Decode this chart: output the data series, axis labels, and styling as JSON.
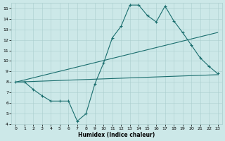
{
  "xlabel": "Humidex (Indice chaleur)",
  "bg_color": "#cce8e8",
  "line_color": "#1a6e6e",
  "xlim": [
    -0.5,
    23.5
  ],
  "ylim": [
    4,
    15.5
  ],
  "xticks": [
    0,
    1,
    2,
    3,
    4,
    5,
    6,
    7,
    8,
    9,
    10,
    11,
    12,
    13,
    14,
    15,
    16,
    17,
    18,
    19,
    20,
    21,
    22,
    23
  ],
  "yticks": [
    4,
    5,
    6,
    7,
    8,
    9,
    10,
    11,
    12,
    13,
    14,
    15
  ],
  "line1_x": [
    0,
    1,
    2,
    3,
    4,
    5,
    6,
    7,
    8,
    9,
    10,
    11,
    12,
    13,
    14,
    15,
    16,
    17,
    18,
    19,
    20,
    21,
    22,
    23
  ],
  "line1_y": [
    8.0,
    8.0,
    7.3,
    6.7,
    6.2,
    6.2,
    6.2,
    4.3,
    5.0,
    7.8,
    9.8,
    12.2,
    13.3,
    15.3,
    15.3,
    14.3,
    13.7,
    15.2,
    13.8,
    12.7,
    11.5,
    10.3,
    9.5,
    8.8
  ],
  "line2_x": [
    0,
    23
  ],
  "line2_y": [
    8.0,
    12.7
  ],
  "line3_x": [
    0,
    23
  ],
  "line3_y": [
    8.0,
    8.7
  ],
  "marker": "+"
}
